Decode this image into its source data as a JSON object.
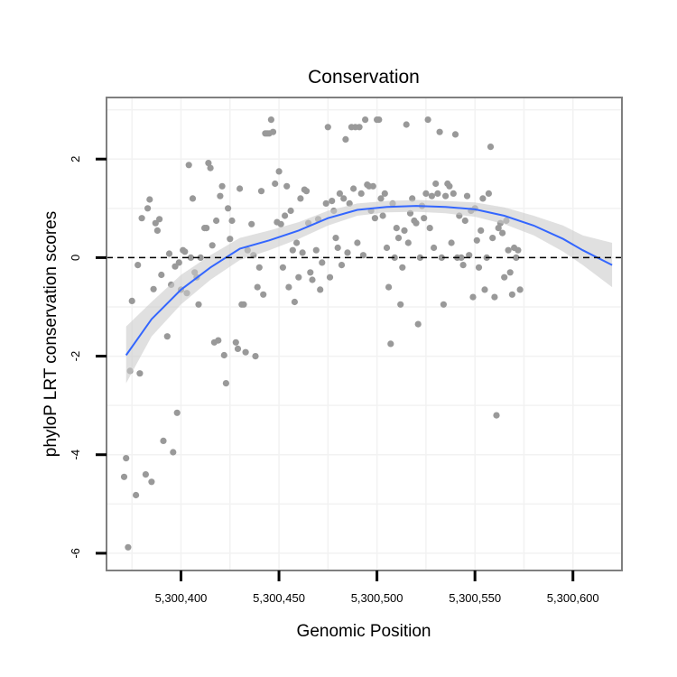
{
  "chart_data": {
    "type": "scatter",
    "title": "Conservation",
    "xlabel": "Genomic Position",
    "ylabel": "phyloP LRT conservation scores",
    "xlim": [
      5300362,
      5300625
    ],
    "ylim": [
      -6.35,
      3.25
    ],
    "xticks": [
      5300400,
      5300450,
      5300500,
      5300550,
      5300600
    ],
    "xtick_labels": [
      "5,300,400",
      "5,300,450",
      "5,300,500",
      "5,300,550",
      "5,300,600"
    ],
    "yticks": [
      -6,
      -4,
      -2,
      0,
      2
    ],
    "ytick_labels": [
      "-6",
      "-4",
      "-2",
      "0",
      "2"
    ],
    "grid": true,
    "reference_line": {
      "y": 0,
      "style": "dashed"
    },
    "colors": {
      "points": "#999999",
      "smooth": "#3366ff",
      "ribbon": "#cccccc",
      "panel_border": "#7f7f7f",
      "grid": "#f2f2f2"
    },
    "series": [
      {
        "name": "scores",
        "points": [
          [
            5300371,
            -4.45
          ],
          [
            5300372,
            -4.07
          ],
          [
            5300373,
            -5.88
          ],
          [
            5300374,
            -2.3
          ],
          [
            5300375,
            -0.88
          ],
          [
            5300377,
            -4.82
          ],
          [
            5300378,
            -0.15
          ],
          [
            5300379,
            -2.35
          ],
          [
            5300380,
            0.8
          ],
          [
            5300382,
            -4.4
          ],
          [
            5300383,
            1.0
          ],
          [
            5300384,
            1.18
          ],
          [
            5300385,
            -4.55
          ],
          [
            5300386,
            -0.64
          ],
          [
            5300387,
            0.7
          ],
          [
            5300388,
            0.55
          ],
          [
            5300389,
            0.78
          ],
          [
            5300390,
            -0.35
          ],
          [
            5300391,
            -3.72
          ],
          [
            5300393,
            -1.6
          ],
          [
            5300394,
            0.08
          ],
          [
            5300395,
            -0.55
          ],
          [
            5300396,
            -3.95
          ],
          [
            5300397,
            -0.18
          ],
          [
            5300398,
            -3.15
          ],
          [
            5300399,
            -0.1
          ],
          [
            5300400,
            -0.65
          ],
          [
            5300401,
            0.15
          ],
          [
            5300402,
            0.12
          ],
          [
            5300403,
            -0.72
          ],
          [
            5300404,
            1.88
          ],
          [
            5300405,
            0.0
          ],
          [
            5300406,
            1.2
          ],
          [
            5300407,
            -0.3
          ],
          [
            5300408,
            -0.4
          ],
          [
            5300409,
            -0.95
          ],
          [
            5300410,
            0.0
          ],
          [
            5300412,
            0.6
          ],
          [
            5300413,
            0.6
          ],
          [
            5300414,
            1.92
          ],
          [
            5300415,
            1.82
          ],
          [
            5300416,
            0.25
          ],
          [
            5300417,
            -1.72
          ],
          [
            5300418,
            0.75
          ],
          [
            5300419,
            -1.68
          ],
          [
            5300420,
            1.25
          ],
          [
            5300421,
            1.45
          ],
          [
            5300422,
            -1.98
          ],
          [
            5300423,
            -2.55
          ],
          [
            5300424,
            1.0
          ],
          [
            5300425,
            0.38
          ],
          [
            5300426,
            0.75
          ],
          [
            5300428,
            -1.72
          ],
          [
            5300429,
            -1.85
          ],
          [
            5300430,
            1.4
          ],
          [
            5300431,
            -0.95
          ],
          [
            5300432,
            -0.95
          ],
          [
            5300433,
            -1.92
          ],
          [
            5300434,
            0.15
          ],
          [
            5300436,
            0.68
          ],
          [
            5300437,
            0.05
          ],
          [
            5300438,
            -2.0
          ],
          [
            5300439,
            -0.6
          ],
          [
            5300440,
            -0.2
          ],
          [
            5300441,
            1.35
          ],
          [
            5300442,
            -0.75
          ],
          [
            5300443,
            2.52
          ],
          [
            5300444,
            2.52
          ],
          [
            5300445,
            2.52
          ],
          [
            5300446,
            2.8
          ],
          [
            5300447,
            2.55
          ],
          [
            5300448,
            1.5
          ],
          [
            5300449,
            0.72
          ],
          [
            5300450,
            1.75
          ],
          [
            5300451,
            0.68
          ],
          [
            5300452,
            -0.2
          ],
          [
            5300453,
            0.85
          ],
          [
            5300454,
            1.45
          ],
          [
            5300455,
            -0.6
          ],
          [
            5300456,
            0.95
          ],
          [
            5300457,
            0.15
          ],
          [
            5300458,
            -0.9
          ],
          [
            5300459,
            0.3
          ],
          [
            5300460,
            -0.4
          ],
          [
            5300461,
            1.2
          ],
          [
            5300462,
            0.1
          ],
          [
            5300463,
            1.38
          ],
          [
            5300464,
            1.35
          ],
          [
            5300465,
            0.7
          ],
          [
            5300466,
            -0.3
          ],
          [
            5300467,
            -0.45
          ],
          [
            5300469,
            0.15
          ],
          [
            5300470,
            0.78
          ],
          [
            5300471,
            -0.65
          ],
          [
            5300472,
            -0.1
          ],
          [
            5300474,
            1.1
          ],
          [
            5300475,
            2.65
          ],
          [
            5300476,
            -0.4
          ],
          [
            5300477,
            1.15
          ],
          [
            5300478,
            0.95
          ],
          [
            5300479,
            0.4
          ],
          [
            5300480,
            0.2
          ],
          [
            5300481,
            1.3
          ],
          [
            5300482,
            -0.15
          ],
          [
            5300483,
            1.2
          ],
          [
            5300484,
            2.4
          ],
          [
            5300485,
            0.1
          ],
          [
            5300486,
            1.1
          ],
          [
            5300487,
            2.65
          ],
          [
            5300488,
            1.4
          ],
          [
            5300489,
            2.65
          ],
          [
            5300490,
            0.3
          ],
          [
            5300491,
            2.65
          ],
          [
            5300492,
            1.3
          ],
          [
            5300493,
            0.05
          ],
          [
            5300494,
            2.8
          ],
          [
            5300495,
            1.48
          ],
          [
            5300496,
            1.45
          ],
          [
            5300497,
            0.95
          ],
          [
            5300498,
            1.45
          ],
          [
            5300499,
            0.8
          ],
          [
            5300500,
            2.8
          ],
          [
            5300501,
            2.8
          ],
          [
            5300502,
            1.2
          ],
          [
            5300503,
            0.85
          ],
          [
            5300504,
            1.3
          ],
          [
            5300505,
            0.2
          ],
          [
            5300506,
            -0.6
          ],
          [
            5300507,
            -1.75
          ],
          [
            5300508,
            1.1
          ],
          [
            5300509,
            0.0
          ],
          [
            5300510,
            0.6
          ],
          [
            5300511,
            0.4
          ],
          [
            5300512,
            -0.95
          ],
          [
            5300513,
            -0.2
          ],
          [
            5300514,
            0.55
          ],
          [
            5300515,
            2.7
          ],
          [
            5300516,
            0.3
          ],
          [
            5300517,
            0.9
          ],
          [
            5300518,
            1.2
          ],
          [
            5300519,
            0.75
          ],
          [
            5300520,
            0.7
          ],
          [
            5300521,
            -1.35
          ],
          [
            5300522,
            0.0
          ],
          [
            5300523,
            1.05
          ],
          [
            5300524,
            0.8
          ],
          [
            5300525,
            1.3
          ],
          [
            5300526,
            2.8
          ],
          [
            5300527,
            0.6
          ],
          [
            5300528,
            1.25
          ],
          [
            5300529,
            0.2
          ],
          [
            5300530,
            1.5
          ],
          [
            5300531,
            1.3
          ],
          [
            5300532,
            2.55
          ],
          [
            5300533,
            0.0
          ],
          [
            5300534,
            -0.95
          ],
          [
            5300535,
            1.25
          ],
          [
            5300536,
            1.5
          ],
          [
            5300537,
            1.45
          ],
          [
            5300538,
            0.3
          ],
          [
            5300539,
            1.3
          ],
          [
            5300540,
            2.5
          ],
          [
            5300541,
            0.0
          ],
          [
            5300542,
            0.85
          ],
          [
            5300543,
            0.0
          ],
          [
            5300544,
            -0.15
          ],
          [
            5300545,
            0.75
          ],
          [
            5300546,
            1.25
          ],
          [
            5300547,
            0.05
          ],
          [
            5300548,
            0.95
          ],
          [
            5300549,
            -0.8
          ],
          [
            5300550,
            1.0
          ],
          [
            5300551,
            0.35
          ],
          [
            5300552,
            -0.2
          ],
          [
            5300553,
            0.55
          ],
          [
            5300554,
            1.2
          ],
          [
            5300555,
            -0.65
          ],
          [
            5300556,
            0.0
          ],
          [
            5300557,
            1.3
          ],
          [
            5300558,
            2.25
          ],
          [
            5300559,
            0.4
          ],
          [
            5300560,
            -0.8
          ],
          [
            5300561,
            -3.2
          ],
          [
            5300562,
            0.6
          ],
          [
            5300563,
            0.7
          ],
          [
            5300564,
            0.5
          ],
          [
            5300565,
            -0.4
          ],
          [
            5300566,
            0.75
          ],
          [
            5300567,
            0.15
          ],
          [
            5300568,
            -0.3
          ],
          [
            5300569,
            -0.75
          ],
          [
            5300570,
            0.2
          ],
          [
            5300571,
            0.0
          ],
          [
            5300572,
            0.15
          ],
          [
            5300573,
            -0.65
          ]
        ]
      }
    ],
    "smooth": {
      "x": [
        5300372,
        5300385,
        5300400,
        5300415,
        5300430,
        5300445,
        5300460,
        5300475,
        5300490,
        5300505,
        5300520,
        5300535,
        5300550,
        5300565,
        5300580,
        5300595,
        5300605,
        5300620
      ],
      "y": [
        -1.98,
        -1.25,
        -0.65,
        -0.2,
        0.18,
        0.35,
        0.55,
        0.8,
        0.97,
        1.03,
        1.05,
        1.03,
        0.98,
        0.85,
        0.65,
        0.38,
        0.15,
        -0.15
      ],
      "lo": [
        -2.55,
        -1.6,
        -0.95,
        -0.45,
        -0.05,
        0.15,
        0.38,
        0.65,
        0.85,
        0.92,
        0.93,
        0.9,
        0.83,
        0.68,
        0.45,
        0.12,
        -0.15,
        -0.6
      ],
      "hi": [
        -1.4,
        -0.9,
        -0.35,
        0.05,
        0.4,
        0.55,
        0.72,
        0.95,
        1.1,
        1.15,
        1.17,
        1.15,
        1.12,
        1.02,
        0.85,
        0.65,
        0.45,
        0.3
      ]
    }
  }
}
